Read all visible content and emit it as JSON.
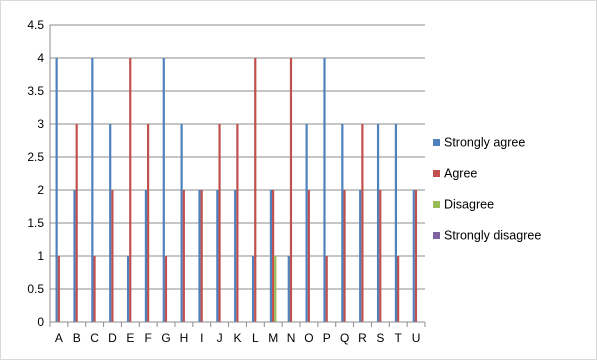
{
  "chart_data": {
    "type": "bar",
    "title": "",
    "xlabel": "",
    "ylabel": "",
    "ylim": [
      0,
      4.5
    ],
    "yticks": [
      "0",
      "0.5",
      "1",
      "1.5",
      "2",
      "2.5",
      "3",
      "3.5",
      "4",
      "4.5"
    ],
    "grid": "horizontal",
    "legend_position": "right",
    "categories": [
      "A",
      "B",
      "C",
      "D",
      "E",
      "F",
      "G",
      "H",
      "I",
      "J",
      "K",
      "L",
      "M",
      "N",
      "O",
      "P",
      "Q",
      "R",
      "S",
      "T",
      "U"
    ],
    "series": [
      {
        "name": "Strongly agree",
        "color": "#4f81bd",
        "values": [
          4,
          2,
          4,
          3,
          1,
          2,
          4,
          3,
          2,
          2,
          2,
          1,
          2,
          1,
          3,
          4,
          3,
          2,
          3,
          3,
          2
        ]
      },
      {
        "name": "Agree",
        "color": "#c0504d",
        "values": [
          1,
          3,
          1,
          2,
          4,
          3,
          1,
          2,
          2,
          3,
          3,
          4,
          2,
          4,
          2,
          1,
          2,
          3,
          2,
          1,
          2
        ]
      },
      {
        "name": "Disagree",
        "color": "#9bbb59",
        "values": [
          0,
          0,
          0,
          0,
          0,
          0,
          0,
          0,
          0,
          0,
          0,
          0,
          1,
          0,
          0,
          0,
          0,
          0,
          0,
          0,
          0
        ]
      },
      {
        "name": "Strongly disagree",
        "color": "#8064a2",
        "values": [
          0,
          0,
          0,
          0,
          0,
          0,
          0,
          0,
          0,
          0,
          0,
          0,
          0,
          0,
          0,
          0,
          0,
          0,
          0,
          0,
          0
        ]
      }
    ]
  }
}
